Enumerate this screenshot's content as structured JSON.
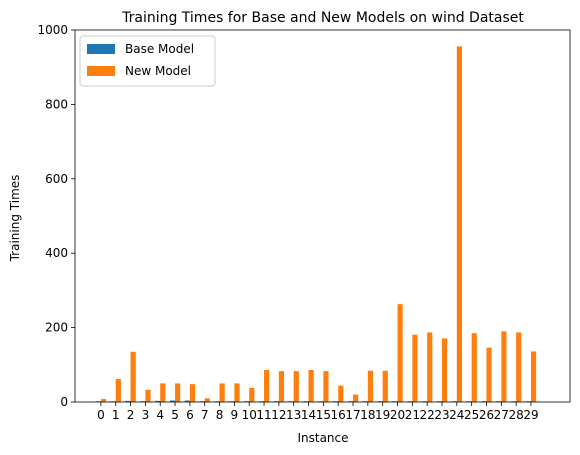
{
  "chart_data": {
    "type": "bar",
    "title": "Training Times for Base and New Models on wind Dataset",
    "xlabel": "Instance",
    "ylabel": "Training Times",
    "categories": [
      "0",
      "1",
      "2",
      "3",
      "4",
      "5",
      "6",
      "7",
      "8",
      "9",
      "10",
      "11",
      "12",
      "13",
      "14",
      "15",
      "16",
      "17",
      "18",
      "19",
      "20",
      "21",
      "22",
      "23",
      "24",
      "25",
      "26",
      "27",
      "28",
      "29"
    ],
    "series": [
      {
        "name": "Base Model",
        "color": "#1f77b4",
        "values": [
          2,
          2,
          3,
          2,
          3,
          4,
          4,
          2,
          2,
          2,
          2,
          2,
          2,
          2,
          2,
          2,
          2,
          2,
          2,
          2,
          2,
          2,
          2,
          2,
          2,
          2,
          2,
          2,
          2,
          2
        ]
      },
      {
        "name": "New Model",
        "color": "#ff7f0e",
        "values": [
          8,
          62,
          135,
          33,
          50,
          50,
          48,
          10,
          50,
          50,
          38,
          86,
          83,
          83,
          86,
          83,
          44,
          20,
          84,
          84,
          263,
          181,
          187,
          171,
          956,
          185,
          146,
          190,
          187,
          136
        ]
      }
    ],
    "ylim": [
      0,
      1000
    ],
    "yticks": [
      0,
      200,
      400,
      600,
      800,
      1000
    ],
    "legend_position": "top-left",
    "grid": false
  }
}
